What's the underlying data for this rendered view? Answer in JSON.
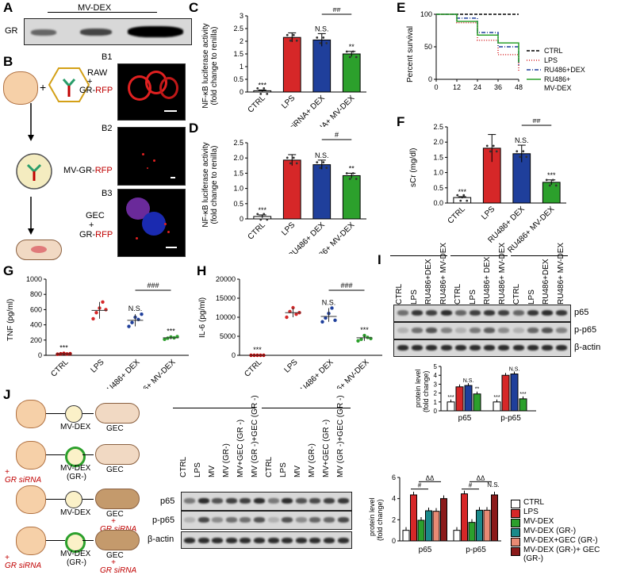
{
  "panels": {
    "A": {
      "letter": "A",
      "title": "MV-DEX",
      "row": "GR"
    },
    "B": {
      "letter": "B",
      "sub": [
        "B1",
        "B2",
        "B3"
      ],
      "raw_line1": "RAW",
      "raw_plus": "+",
      "raw_line2_a": "GR-",
      "raw_line2_b": "RFP",
      "mv_a": "MV-GR-",
      "mv_b": "RFP",
      "gec_line1": "GEC",
      "gec_plus": "+",
      "gec_line2_a": "GR-",
      "gec_line2_b": "RFP",
      "plus": "+"
    },
    "C": {
      "letter": "C",
      "ylabel1": "NF-κB luciferase activity",
      "ylabel2": "(fold change to renilla)"
    },
    "D": {
      "letter": "D",
      "ylabel1": "NF-κB luciferase activity",
      "ylabel2": "(fold change to renilla)"
    },
    "E": {
      "letter": "E",
      "ylabel": "Percent survival"
    },
    "F": {
      "letter": "F",
      "ylabel": "sCr (mg/dl)"
    },
    "G": {
      "letter": "G",
      "ylabel": "TNF (pg/ml)"
    },
    "H": {
      "letter": "H",
      "ylabel": "IL-6 (pg/ml)"
    },
    "I": {
      "letter": "I",
      "lanes": [
        "CTRL",
        "LPS",
        "RU486+DEX",
        "RU486+ MV-DEX",
        "CTRL",
        "LPS",
        "RU486+ DEX",
        "RU486+ MV-DEX",
        "CTRL",
        "LPS",
        "RU486+DEX",
        "RU486+ MV-DEX"
      ],
      "rows": [
        "p65",
        "p-p65",
        "β-actin"
      ]
    },
    "J": {
      "letter": "J",
      "rows": [
        "p65",
        "p-p65",
        "β-actin"
      ],
      "lanes": [
        "CTRL",
        "LPS",
        "MV",
        "MV (GR-)",
        "MV+GEC (GR -)",
        "MV (GR -)+GEC (GR -)",
        "CTRL",
        "LPS",
        "MV",
        "MV (GR-)",
        "MV+GEC (GR -)",
        "MV (GR -)+GEC (GR -)"
      ],
      "scheme": {
        "mv": "MV-DEX",
        "mvgr": "MV-DEX",
        "grm": "(GR-)",
        "gec": "GEC",
        "gr_sirna": "GR siRNA",
        "plus": "+"
      }
    }
  },
  "colors": {
    "ctrl": "#ffffff",
    "lps": "#d62728",
    "dex": "#1f3f9b",
    "mvdex": "#2ca02c",
    "gr_mv": "#1a8a8a",
    "mvgec": "#e88a74",
    "mvgrgec": "#8b1a1a"
  },
  "chart_data": [
    {
      "panel": "C",
      "type": "bar",
      "categories": [
        "CTRL",
        "LPS",
        "GR siRNA+ DEX",
        "GR siRNA+ MV-DEX"
      ],
      "values": [
        0.05,
        2.15,
        2.05,
        1.5
      ],
      "errors": [
        0.03,
        0.18,
        0.25,
        0.1
      ],
      "ylim": [
        0,
        3
      ],
      "yticks": [
        0,
        0.5,
        1,
        1.5,
        2,
        2.5,
        3
      ],
      "tick_labels": [
        "0",
        "0.5",
        "1",
        "1.5",
        "2",
        "2.5",
        "3"
      ],
      "annotations": [
        "***",
        "",
        "N.S.",
        "**"
      ],
      "comparison": "##"
    },
    {
      "panel": "D",
      "type": "bar",
      "categories": [
        "CTRL",
        "LPS",
        "RU486+ DEX",
        "RU486+ MV-DEX"
      ],
      "values": [
        0.08,
        1.93,
        1.78,
        1.42
      ],
      "errors": [
        0.05,
        0.18,
        0.15,
        0.08
      ],
      "ylim": [
        0,
        2.5
      ],
      "yticks": [
        0,
        0.5,
        1,
        1.5,
        2,
        2.5
      ],
      "tick_labels": [
        "0",
        "0.5",
        "1.0",
        "1.5",
        "2.0",
        "2.5"
      ],
      "annotations": [
        "***",
        "",
        "N.S.",
        "**"
      ],
      "comparison": "#"
    },
    {
      "panel": "E",
      "type": "line",
      "xticks": [
        0,
        12,
        24,
        36,
        48
      ],
      "yticks": [
        0,
        50,
        100
      ],
      "xlim": [
        0,
        48
      ],
      "ylim": [
        0,
        100
      ],
      "series": [
        {
          "name": "CTRL",
          "x": [
            0,
            48
          ],
          "y": [
            100,
            100
          ]
        },
        {
          "name": "LPS",
          "x": [
            0,
            12,
            24,
            36,
            48
          ],
          "y": [
            100,
            87,
            60,
            38,
            12
          ]
        },
        {
          "name": "RU486+DEX",
          "x": [
            0,
            12,
            24,
            36,
            48
          ],
          "y": [
            100,
            94,
            72,
            50,
            22
          ]
        },
        {
          "name": "RU486+ MV-DEX",
          "x": [
            0,
            12,
            24,
            36,
            48
          ],
          "y": [
            100,
            89,
            68,
            56,
            26
          ]
        }
      ]
    },
    {
      "panel": "F",
      "type": "bar",
      "categories": [
        "CTRL",
        "LPS",
        "RU486+ DEX",
        "RU486+ MV-DEX"
      ],
      "values": [
        0.18,
        1.8,
        1.62,
        0.68
      ],
      "errors": [
        0.03,
        0.45,
        0.28,
        0.08
      ],
      "ylim": [
        0,
        2.5
      ],
      "yticks": [
        0,
        0.5,
        1,
        1.5,
        2,
        2.5
      ],
      "tick_labels": [
        "0.0",
        "0.5",
        "1.0",
        "1.5",
        "2.0",
        "2.5"
      ],
      "annotations": [
        "***",
        "",
        "N.S.",
        "***"
      ],
      "comparison": "##"
    },
    {
      "panel": "G",
      "type": "scatter",
      "categories": [
        "CTRL",
        "LPS",
        "RU486+ DEX",
        "RU486+ MV-DEX"
      ],
      "values": [
        20,
        590,
        460,
        230
      ],
      "ylim": [
        0,
        1000
      ],
      "yticks": [
        0,
        200,
        400,
        600,
        800,
        1000
      ],
      "tick_labels": [
        "0",
        "200",
        "400",
        "600",
        "800",
        "1000"
      ],
      "annotations": [
        "***",
        "",
        "N.S.",
        "***"
      ],
      "comparison": "###"
    },
    {
      "panel": "H",
      "type": "scatter",
      "categories": [
        "CTRL",
        "LPS",
        "RU486+ DEX",
        "RU486+ MV-DEX"
      ],
      "values": [
        0,
        11200,
        10200,
        4600
      ],
      "ylim": [
        0,
        20000
      ],
      "yticks": [
        0,
        5000,
        10000,
        15000,
        20000
      ],
      "tick_labels": [
        "0",
        "5000",
        "10000",
        "15000",
        "20000"
      ],
      "annotations": [
        "***",
        "",
        "N.S.",
        "***"
      ],
      "comparison": "###"
    },
    {
      "panel": "I",
      "type": "bar",
      "ylabel": "protein level (fold change)",
      "groups": [
        "p65",
        "p-p65"
      ],
      "series_colors": [
        "#ffffff",
        "#d62728",
        "#1f3f9b",
        "#2ca02c"
      ],
      "values": [
        [
          1.0,
          2.7,
          2.85,
          1.9
        ],
        [
          1.0,
          4.0,
          4.15,
          1.35
        ]
      ],
      "ylim": [
        0,
        5
      ],
      "yticks": [
        0,
        1,
        2,
        3,
        4,
        5
      ],
      "annotations": [
        [
          "***",
          "",
          "N.S.",
          "**"
        ],
        [
          "***",
          "",
          "N.S.",
          "***"
        ]
      ]
    },
    {
      "panel": "J",
      "type": "bar",
      "ylabel": "protein level (fold change)",
      "groups": [
        "p65",
        "p-p65"
      ],
      "series": [
        {
          "name": "CTRL"
        },
        {
          "name": "LPS"
        },
        {
          "name": "MV-DEX"
        },
        {
          "name": "MV-DEX (GR-)"
        },
        {
          "name": "MV-DEX+GEC (GR-)"
        },
        {
          "name": "MV-DEX (GR-)+ GEC (GR-)"
        }
      ],
      "values": [
        [
          1.0,
          4.35,
          1.95,
          2.85,
          2.8,
          4.0
        ],
        [
          1.0,
          4.45,
          1.75,
          2.9,
          2.9,
          4.35
        ]
      ],
      "ylim": [
        0,
        6
      ],
      "yticks": [
        0,
        2,
        4,
        6
      ],
      "comparisons": [
        "#",
        "#",
        "ΔΔ",
        "ΔΔ",
        "N.S."
      ]
    }
  ]
}
